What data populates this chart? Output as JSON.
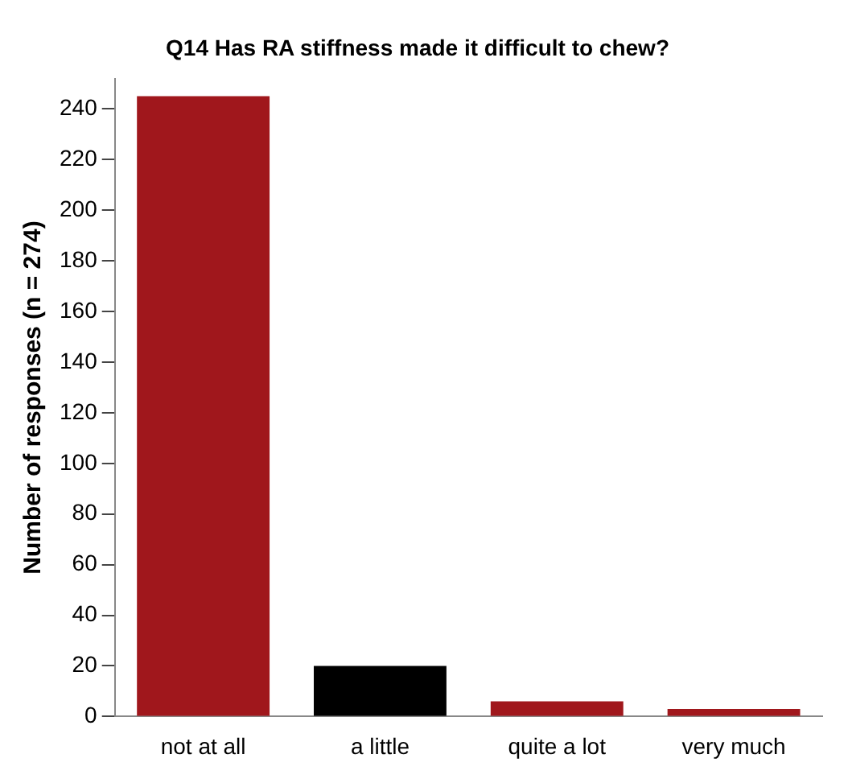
{
  "chart_data": {
    "type": "bar",
    "title": "Q14 Has RA stiffness made it difficult to chew?",
    "ylabel": "Number of responses (n = 274)",
    "categories": [
      "not at all",
      "a little",
      "quite a lot",
      "very much"
    ],
    "values": [
      245,
      20,
      6,
      3
    ],
    "colors": [
      "#a0171c",
      "#000000",
      "#a0171c",
      "#a0171c"
    ],
    "ylim": [
      0,
      252
    ],
    "yticks": [
      0,
      20,
      40,
      60,
      80,
      100,
      120,
      140,
      160,
      180,
      200,
      220,
      240
    ],
    "grid": false,
    "legend": false
  }
}
